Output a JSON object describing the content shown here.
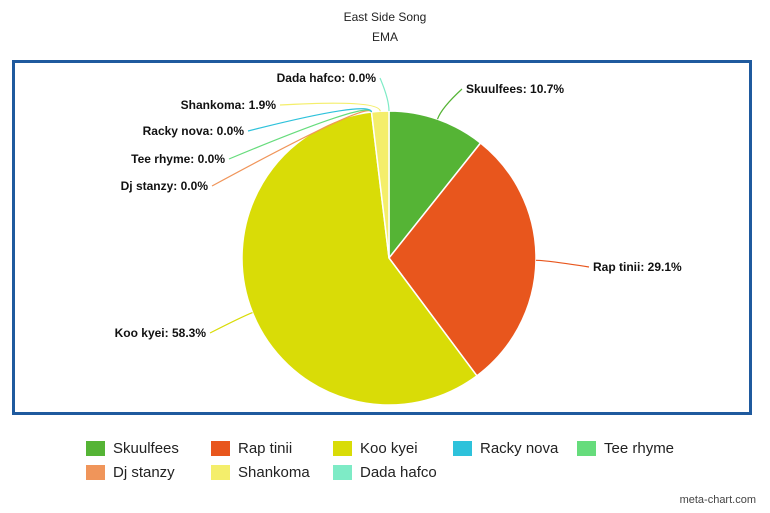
{
  "chart_data": {
    "type": "pie",
    "title": "East Side Song",
    "subtitle": "EMA",
    "slices": [
      {
        "name": "Skuulfees",
        "label": "Skuulfees: 10.7%",
        "value": 10.7,
        "color": "#55b435"
      },
      {
        "name": "Rap tinii",
        "label": "Rap tinii: 29.1%",
        "value": 29.1,
        "color": "#e8561d"
      },
      {
        "name": "Koo kyei",
        "label": "Koo kyei: 58.3%",
        "value": 58.3,
        "color": "#d9dc07"
      },
      {
        "name": "Dj stanzy",
        "label": "Dj stanzy: 0.0%",
        "value": 0.0,
        "color": "#f0955a"
      },
      {
        "name": "Tee rhyme",
        "label": "Tee rhyme: 0.0%",
        "value": 0.0,
        "color": "#66dc7c"
      },
      {
        "name": "Racky nova",
        "label": "Racky nova: 0.0%",
        "value": 0.0,
        "color": "#2ec2db"
      },
      {
        "name": "Shankoma",
        "label": "Shankoma: 1.9%",
        "value": 1.9,
        "color": "#f4ee6b"
      },
      {
        "name": "Dada hafco",
        "label": "Dada hafco: 0.0%",
        "value": 0.0,
        "color": "#7eebc6"
      }
    ],
    "legend_position": "bottom",
    "legend": [
      {
        "label": "Skuulfees",
        "color": "#55b435"
      },
      {
        "label": "Rap tinii",
        "color": "#e8561d"
      },
      {
        "label": "Koo kyei",
        "color": "#d9dc07"
      },
      {
        "label": "Racky nova",
        "color": "#2ec2db"
      },
      {
        "label": "Tee rhyme",
        "color": "#66dc7c"
      },
      {
        "label": "Dj stanzy",
        "color": "#f0955a"
      },
      {
        "label": "Shankoma",
        "color": "#f4ee6b"
      },
      {
        "label": "Dada hafco",
        "color": "#7eebc6"
      }
    ],
    "border_color": "#1f5a9e"
  },
  "credit": "meta-chart.com"
}
